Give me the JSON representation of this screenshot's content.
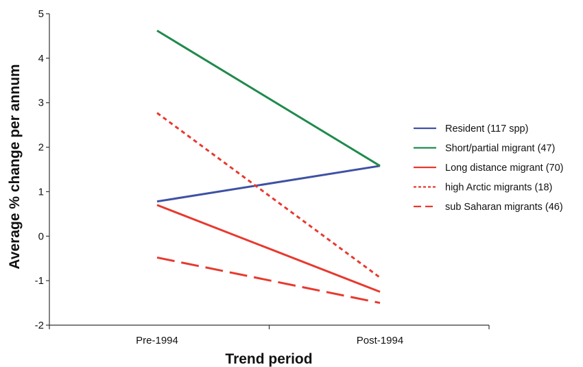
{
  "chart_data": {
    "type": "line",
    "title": "",
    "xlabel": "Trend period",
    "ylabel": "Average % change per annum",
    "categories": [
      "Pre-1994",
      "Post-1994"
    ],
    "ylim": [
      -2,
      5
    ],
    "yticks": [
      -2,
      -1,
      0,
      1,
      2,
      3,
      4,
      5
    ],
    "grid": false,
    "legend_position": "right",
    "series": [
      {
        "name": "Resident  (117 spp)",
        "values": [
          0.78,
          1.58
        ],
        "color": "#3f51a3",
        "dash": "solid"
      },
      {
        "name": "Short/partial migrant (47)",
        "values": [
          4.62,
          1.58
        ],
        "color": "#1f8a4c",
        "dash": "solid"
      },
      {
        "name": "Long distance migrant (70)",
        "values": [
          0.7,
          -1.25
        ],
        "color": "#e8392e",
        "dash": "solid"
      },
      {
        "name": "high Arctic migrants (18)",
        "values": [
          2.77,
          -0.93
        ],
        "color": "#e8392e",
        "dash": "short"
      },
      {
        "name": "sub Saharan migrants (46)",
        "values": [
          -0.48,
          -1.5
        ],
        "color": "#e8392e",
        "dash": "long"
      }
    ]
  }
}
